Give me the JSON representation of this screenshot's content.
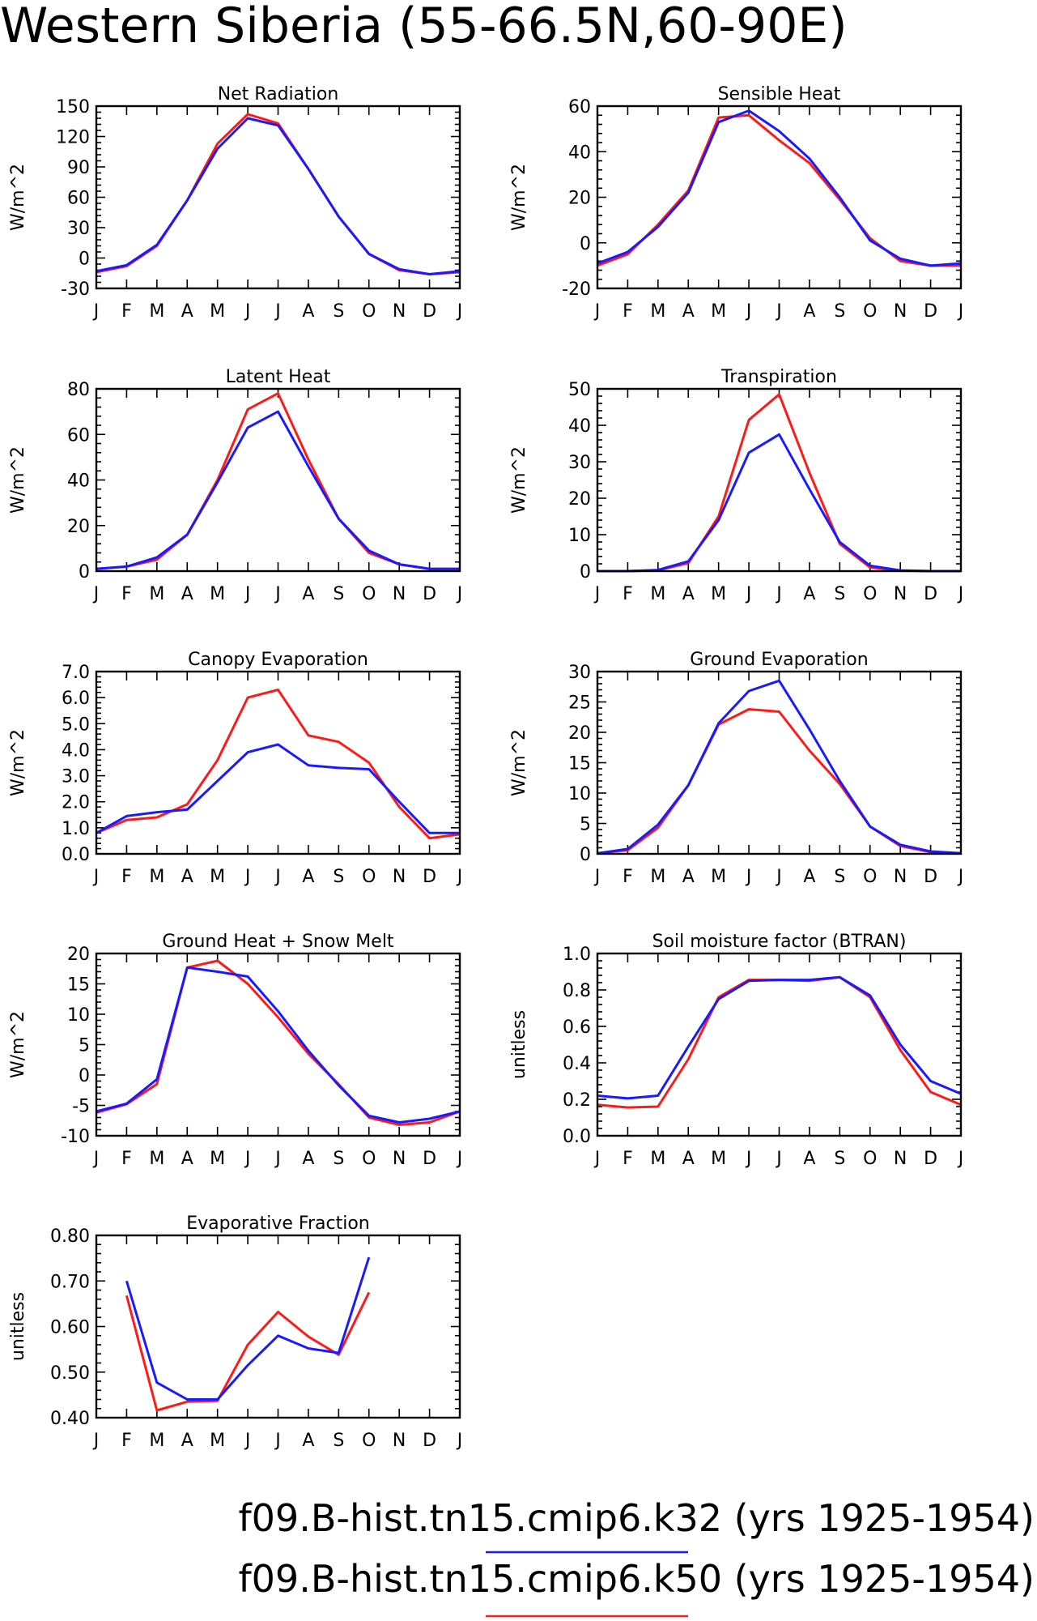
{
  "title": "Western Siberia (55-66.5N,60-90E)",
  "colors": {
    "k32": "#1a1aff",
    "k50": "#ff1a1a"
  },
  "legend": [
    {
      "label": "f09.B-hist.tn15.cmip6.k32 (yrs 1925-1954)",
      "color": "#1a1aff"
    },
    {
      "label": "f09.B-hist.tn15.cmip6.k50 (yrs 1925-1954)",
      "color": "#ff1a1a"
    }
  ],
  "chart_data": [
    {
      "type": "line",
      "title": "Net Radiation",
      "ylabel": "W/m^2",
      "x": [
        "J",
        "F",
        "M",
        "A",
        "M",
        "J",
        "J",
        "A",
        "S",
        "O",
        "N",
        "D",
        "J"
      ],
      "ylim": [
        -30,
        150
      ],
      "yticks": [
        -30,
        0,
        30,
        60,
        90,
        120,
        150
      ],
      "ytick_labels": [
        "-30",
        "0",
        "30",
        "60",
        "90",
        "120",
        "150"
      ],
      "series": [
        {
          "values": [
            -13,
            -7,
            13,
            57,
            108,
            138,
            131,
            88,
            41,
            4,
            -11,
            -16,
            -13
          ]
        },
        {
          "values": [
            -14,
            -8,
            12,
            57,
            113,
            142,
            133,
            88,
            41,
            4,
            -12,
            -16,
            -14
          ]
        }
      ]
    },
    {
      "type": "line",
      "title": "Sensible Heat",
      "ylabel": "W/m^2",
      "x": [
        "J",
        "F",
        "M",
        "A",
        "M",
        "J",
        "J",
        "A",
        "S",
        "O",
        "N",
        "D",
        "J"
      ],
      "ylim": [
        -20,
        60
      ],
      "yticks": [
        -20,
        0,
        20,
        40,
        60
      ],
      "ytick_labels": [
        "-20",
        "0",
        "20",
        "40",
        "60"
      ],
      "series": [
        {
          "values": [
            -9,
            -4,
            7,
            22,
            53,
            58,
            49,
            37,
            20,
            1,
            -7,
            -10,
            -9
          ]
        },
        {
          "values": [
            -10,
            -5,
            8,
            23,
            55,
            56,
            45,
            35,
            19,
            2,
            -8,
            -10,
            -10
          ]
        }
      ]
    },
    {
      "type": "line",
      "title": "Latent Heat",
      "ylabel": "W/m^2",
      "x": [
        "J",
        "F",
        "M",
        "A",
        "M",
        "J",
        "J",
        "A",
        "S",
        "O",
        "N",
        "D",
        "J"
      ],
      "ylim": [
        0,
        80
      ],
      "yticks": [
        0,
        20,
        40,
        60,
        80
      ],
      "ytick_labels": [
        "0",
        "20",
        "40",
        "60",
        "80"
      ],
      "series": [
        {
          "values": [
            1,
            2,
            6,
            16,
            39,
            63,
            70,
            46,
            23,
            9,
            3,
            1,
            1
          ]
        },
        {
          "values": [
            1,
            2,
            5,
            16,
            40,
            71,
            78,
            49,
            23,
            8,
            3,
            1,
            1
          ]
        }
      ]
    },
    {
      "type": "line",
      "title": "Transpiration",
      "ylabel": "W/m^2",
      "x": [
        "J",
        "F",
        "M",
        "A",
        "M",
        "J",
        "J",
        "A",
        "S",
        "O",
        "N",
        "D",
        "J"
      ],
      "ylim": [
        0,
        50
      ],
      "yticks": [
        0,
        10,
        20,
        30,
        40,
        50
      ],
      "ytick_labels": [
        "0",
        "10",
        "20",
        "30",
        "40",
        "50"
      ],
      "series": [
        {
          "values": [
            0,
            0,
            0.3,
            2.7,
            14,
            32.5,
            37.5,
            22.5,
            8,
            1.5,
            0.2,
            0,
            0
          ]
        },
        {
          "values": [
            0,
            0,
            0.2,
            2.2,
            15,
            41.5,
            48.5,
            27,
            7.5,
            1,
            0.1,
            0,
            0
          ]
        }
      ]
    },
    {
      "type": "line",
      "title": "Canopy Evaporation",
      "ylabel": "W/m^2",
      "x": [
        "J",
        "F",
        "M",
        "A",
        "M",
        "J",
        "J",
        "A",
        "S",
        "O",
        "N",
        "D",
        "J"
      ],
      "ylim": [
        0,
        7
      ],
      "yticks": [
        0,
        1,
        2,
        3,
        4,
        5,
        6,
        7
      ],
      "ytick_labels": [
        "0.0",
        "1.0",
        "2.0",
        "3.0",
        "4.0",
        "5.0",
        "6.0",
        "7.0"
      ],
      "series": [
        {
          "values": [
            0.8,
            1.45,
            1.6,
            1.7,
            2.8,
            3.9,
            4.2,
            3.4,
            3.3,
            3.25,
            2,
            0.8,
            0.8
          ]
        },
        {
          "values": [
            0.8,
            1.3,
            1.4,
            1.9,
            3.6,
            6.0,
            6.3,
            4.55,
            4.3,
            3.5,
            1.8,
            0.6,
            0.75
          ]
        }
      ]
    },
    {
      "type": "line",
      "title": "Ground Evaporation",
      "ylabel": "W/m^2",
      "x": [
        "J",
        "F",
        "M",
        "A",
        "M",
        "J",
        "J",
        "A",
        "S",
        "O",
        "N",
        "D",
        "J"
      ],
      "ylim": [
        0,
        30
      ],
      "yticks": [
        0,
        5,
        10,
        15,
        20,
        25,
        30
      ],
      "ytick_labels": [
        "0",
        "5",
        "10",
        "15",
        "20",
        "25",
        "30"
      ],
      "series": [
        {
          "values": [
            0.1,
            0.8,
            4.8,
            11.3,
            21.5,
            26.8,
            28.5,
            20.5,
            12,
            4.5,
            1.5,
            0.4,
            0.1
          ]
        },
        {
          "values": [
            0.1,
            0.6,
            4.3,
            11.3,
            21.3,
            23.8,
            23.4,
            17,
            11.5,
            4.5,
            1.3,
            0.3,
            0.1
          ]
        }
      ]
    },
    {
      "type": "line",
      "title": "Ground Heat + Snow Melt",
      "ylabel": "W/m^2",
      "x": [
        "J",
        "F",
        "M",
        "A",
        "M",
        "J",
        "J",
        "A",
        "S",
        "O",
        "N",
        "D",
        "J"
      ],
      "ylim": [
        -10,
        20
      ],
      "yticks": [
        -10,
        -5,
        0,
        5,
        10,
        15,
        20
      ],
      "ytick_labels": [
        "-10",
        "-5",
        "0",
        "5",
        "10",
        "15",
        "20"
      ],
      "series": [
        {
          "values": [
            -6,
            -4.7,
            -0.7,
            17.7,
            17,
            16.2,
            10.5,
            4,
            -1.7,
            -6.7,
            -7.8,
            -7.2,
            -6
          ]
        },
        {
          "values": [
            -6.2,
            -4.8,
            -1.5,
            17.7,
            18.8,
            15,
            9.5,
            3.5,
            -1.5,
            -7,
            -8.2,
            -7.8,
            -6
          ]
        }
      ]
    },
    {
      "type": "line",
      "title": "Soil moisture factor (BTRAN)",
      "ylabel": "unitless",
      "x": [
        "J",
        "F",
        "M",
        "A",
        "M",
        "J",
        "J",
        "A",
        "S",
        "O",
        "N",
        "D",
        "J"
      ],
      "ylim": [
        0,
        1
      ],
      "yticks": [
        0,
        0.2,
        0.4,
        0.6,
        0.8,
        1.0
      ],
      "ytick_labels": [
        "0.0",
        "0.2",
        "0.4",
        "0.6",
        "0.8",
        "1.0"
      ],
      "series": [
        {
          "values": [
            0.22,
            0.205,
            0.22,
            0.49,
            0.75,
            0.85,
            0.855,
            0.855,
            0.87,
            0.77,
            0.5,
            0.3,
            0.23
          ]
        },
        {
          "values": [
            0.17,
            0.155,
            0.16,
            0.42,
            0.76,
            0.855,
            0.855,
            0.85,
            0.87,
            0.76,
            0.47,
            0.24,
            0.17
          ]
        }
      ]
    },
    {
      "type": "line",
      "title": "Evaporative Fraction",
      "ylabel": "unitless",
      "x": [
        "J",
        "F",
        "M",
        "A",
        "M",
        "J",
        "J",
        "A",
        "S",
        "O",
        "N",
        "D",
        "J"
      ],
      "ylim": [
        0.4,
        0.8
      ],
      "yticks": [
        0.4,
        0.5,
        0.6,
        0.7,
        0.8
      ],
      "ytick_labels": [
        "0.40",
        "0.50",
        "0.60",
        "0.70",
        "0.80"
      ],
      "series": [
        {
          "values": [
            null,
            0.7,
            0.477,
            0.44,
            0.44,
            0.515,
            0.58,
            0.552,
            0.542,
            0.752,
            null,
            null,
            null
          ]
        },
        {
          "values": [
            null,
            0.668,
            0.416,
            0.435,
            0.437,
            0.56,
            0.632,
            0.578,
            0.538,
            0.675,
            null,
            null,
            null
          ]
        }
      ]
    }
  ]
}
